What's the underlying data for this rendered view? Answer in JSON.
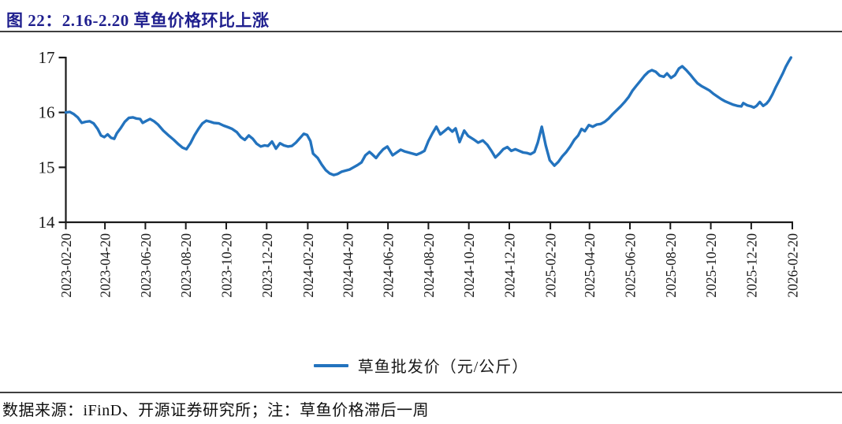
{
  "header": {
    "figure_title": "图 22：2.16-2.20 草鱼价格环比上涨"
  },
  "legend": {
    "series_label": "草鱼批发价（元/公斤）"
  },
  "footer": {
    "source_note": "数据来源：iFinD、开源证券研究所；注：草鱼价格滞后一周"
  },
  "colors": {
    "title_blue": "#1f1f8e",
    "line_blue": "#2373be",
    "axis_black": "#1a1a1a",
    "rule_gray": "#3f3f3f"
  },
  "chart_data": {
    "type": "line",
    "title": "图 22：2.16-2.20 草鱼价格环比上涨",
    "series_name": "草鱼批发价（元/公斤）",
    "xlabel": "",
    "ylabel": "",
    "ylim": [
      14,
      17
    ],
    "y_ticks": [
      17,
      16,
      15,
      14
    ],
    "grid": false,
    "legend_position": "bottom-center",
    "x_range": [
      "2023-02-20",
      "2026-02-20"
    ],
    "x_tick_labels": [
      "2023-02-20",
      "2023-04-20",
      "2023-06-20",
      "2023-08-20",
      "2023-10-20",
      "2023-12-20",
      "2024-02-20",
      "2024-04-20",
      "2024-06-20",
      "2024-08-20",
      "2024-10-20",
      "2024-12-20",
      "2025-02-20",
      "2025-04-20",
      "2025-06-20",
      "2025-08-20",
      "2025-10-20",
      "2025-12-20",
      "2026-02-20"
    ],
    "points": [
      [
        "2023-02-20",
        16.0
      ],
      [
        "2023-02-26",
        16.01
      ],
      [
        "2023-03-04",
        15.97
      ],
      [
        "2023-03-10",
        15.91
      ],
      [
        "2023-03-16",
        15.81
      ],
      [
        "2023-03-22",
        15.83
      ],
      [
        "2023-03-28",
        15.84
      ],
      [
        "2023-04-03",
        15.8
      ],
      [
        "2023-04-09",
        15.7
      ],
      [
        "2023-04-14",
        15.58
      ],
      [
        "2023-04-19",
        15.55
      ],
      [
        "2023-04-24",
        15.6
      ],
      [
        "2023-04-29",
        15.54
      ],
      [
        "2023-05-04",
        15.52
      ],
      [
        "2023-05-08",
        15.62
      ],
      [
        "2023-05-14",
        15.72
      ],
      [
        "2023-05-20",
        15.83
      ],
      [
        "2023-05-26",
        15.9
      ],
      [
        "2023-06-01",
        15.91
      ],
      [
        "2023-06-06",
        15.89
      ],
      [
        "2023-06-12",
        15.88
      ],
      [
        "2023-06-16",
        15.81
      ],
      [
        "2023-06-22",
        15.85
      ],
      [
        "2023-06-27",
        15.88
      ],
      [
        "2023-07-03",
        15.84
      ],
      [
        "2023-07-09",
        15.78
      ],
      [
        "2023-07-17",
        15.67
      ],
      [
        "2023-07-26",
        15.57
      ],
      [
        "2023-08-02",
        15.5
      ],
      [
        "2023-08-09",
        15.42
      ],
      [
        "2023-08-15",
        15.36
      ],
      [
        "2023-08-21",
        15.33
      ],
      [
        "2023-08-27",
        15.44
      ],
      [
        "2023-09-02",
        15.58
      ],
      [
        "2023-09-08",
        15.7
      ],
      [
        "2023-09-14",
        15.8
      ],
      [
        "2023-09-20",
        15.85
      ],
      [
        "2023-09-26",
        15.83
      ],
      [
        "2023-10-01",
        15.81
      ],
      [
        "2023-10-09",
        15.8
      ],
      [
        "2023-10-16",
        15.76
      ],
      [
        "2023-10-23",
        15.73
      ],
      [
        "2023-10-29",
        15.7
      ],
      [
        "2023-11-05",
        15.64
      ],
      [
        "2023-11-11",
        15.55
      ],
      [
        "2023-11-17",
        15.5
      ],
      [
        "2023-11-23",
        15.58
      ],
      [
        "2023-11-29",
        15.52
      ],
      [
        "2023-12-05",
        15.43
      ],
      [
        "2023-12-11",
        15.38
      ],
      [
        "2023-12-17",
        15.4
      ],
      [
        "2023-12-22",
        15.39
      ],
      [
        "2023-12-28",
        15.47
      ],
      [
        "2024-01-03",
        15.34
      ],
      [
        "2024-01-09",
        15.44
      ],
      [
        "2024-01-15",
        15.4
      ],
      [
        "2024-01-21",
        15.38
      ],
      [
        "2024-01-27",
        15.39
      ],
      [
        "2024-02-02",
        15.45
      ],
      [
        "2024-02-08",
        15.53
      ],
      [
        "2024-02-14",
        15.61
      ],
      [
        "2024-02-19",
        15.59
      ],
      [
        "2024-02-24",
        15.48
      ],
      [
        "2024-02-28",
        15.25
      ],
      [
        "2024-03-06",
        15.17
      ],
      [
        "2024-03-12",
        15.05
      ],
      [
        "2024-03-18",
        14.95
      ],
      [
        "2024-03-24",
        14.89
      ],
      [
        "2024-03-30",
        14.86
      ],
      [
        "2024-04-05",
        14.88
      ],
      [
        "2024-04-11",
        14.92
      ],
      [
        "2024-04-17",
        14.94
      ],
      [
        "2024-04-23",
        14.96
      ],
      [
        "2024-04-29",
        15.0
      ],
      [
        "2024-05-05",
        15.04
      ],
      [
        "2024-05-11",
        15.09
      ],
      [
        "2024-05-17",
        15.22
      ],
      [
        "2024-05-23",
        15.28
      ],
      [
        "2024-05-27",
        15.24
      ],
      [
        "2024-06-02",
        15.17
      ],
      [
        "2024-06-07",
        15.25
      ],
      [
        "2024-06-13",
        15.33
      ],
      [
        "2024-06-19",
        15.38
      ],
      [
        "2024-06-27",
        15.22
      ],
      [
        "2024-07-03",
        15.27
      ],
      [
        "2024-07-09",
        15.32
      ],
      [
        "2024-07-15",
        15.29
      ],
      [
        "2024-07-21",
        15.27
      ],
      [
        "2024-07-27",
        15.25
      ],
      [
        "2024-08-02",
        15.23
      ],
      [
        "2024-08-08",
        15.26
      ],
      [
        "2024-08-14",
        15.3
      ],
      [
        "2024-08-20",
        15.48
      ],
      [
        "2024-08-26",
        15.62
      ],
      [
        "2024-09-01",
        15.74
      ],
      [
        "2024-09-07",
        15.6
      ],
      [
        "2024-09-13",
        15.66
      ],
      [
        "2024-09-19",
        15.72
      ],
      [
        "2024-09-25",
        15.65
      ],
      [
        "2024-09-30",
        15.71
      ],
      [
        "2024-10-06",
        15.46
      ],
      [
        "2024-10-13",
        15.67
      ],
      [
        "2024-10-19",
        15.57
      ],
      [
        "2024-10-27",
        15.51
      ],
      [
        "2024-11-03",
        15.45
      ],
      [
        "2024-11-10",
        15.49
      ],
      [
        "2024-11-17",
        15.41
      ],
      [
        "2024-11-23",
        15.3
      ],
      [
        "2024-11-29",
        15.18
      ],
      [
        "2024-12-05",
        15.25
      ],
      [
        "2024-12-11",
        15.33
      ],
      [
        "2024-12-17",
        15.37
      ],
      [
        "2024-12-23",
        15.3
      ],
      [
        "2024-12-29",
        15.33
      ],
      [
        "2025-01-04",
        15.3
      ],
      [
        "2025-01-10",
        15.27
      ],
      [
        "2025-01-16",
        15.26
      ],
      [
        "2025-01-21",
        15.24
      ],
      [
        "2025-01-27",
        15.28
      ],
      [
        "2025-02-01",
        15.45
      ],
      [
        "2025-02-07",
        15.74
      ],
      [
        "2025-02-13",
        15.4
      ],
      [
        "2025-02-19",
        15.13
      ],
      [
        "2025-02-26",
        15.03
      ],
      [
        "2025-03-04",
        15.1
      ],
      [
        "2025-03-10",
        15.2
      ],
      [
        "2025-03-16",
        15.28
      ],
      [
        "2025-03-22",
        15.38
      ],
      [
        "2025-03-28",
        15.5
      ],
      [
        "2025-04-03",
        15.58
      ],
      [
        "2025-04-08",
        15.7
      ],
      [
        "2025-04-13",
        15.66
      ],
      [
        "2025-04-19",
        15.77
      ],
      [
        "2025-04-25",
        15.74
      ],
      [
        "2025-05-01",
        15.78
      ],
      [
        "2025-05-07",
        15.79
      ],
      [
        "2025-05-13",
        15.83
      ],
      [
        "2025-05-19",
        15.89
      ],
      [
        "2025-05-25",
        15.97
      ],
      [
        "2025-05-31",
        16.04
      ],
      [
        "2025-06-06",
        16.11
      ],
      [
        "2025-06-12",
        16.19
      ],
      [
        "2025-06-18",
        16.28
      ],
      [
        "2025-06-24",
        16.4
      ],
      [
        "2025-06-30",
        16.49
      ],
      [
        "2025-07-06",
        16.58
      ],
      [
        "2025-07-12",
        16.67
      ],
      [
        "2025-07-18",
        16.74
      ],
      [
        "2025-07-23",
        16.77
      ],
      [
        "2025-07-29",
        16.74
      ],
      [
        "2025-08-04",
        16.67
      ],
      [
        "2025-08-10",
        16.65
      ],
      [
        "2025-08-15",
        16.71
      ],
      [
        "2025-08-21",
        16.63
      ],
      [
        "2025-08-27",
        16.68
      ],
      [
        "2025-09-02",
        16.8
      ],
      [
        "2025-09-07",
        16.84
      ],
      [
        "2025-09-13",
        16.77
      ],
      [
        "2025-09-19",
        16.69
      ],
      [
        "2025-09-25",
        16.6
      ],
      [
        "2025-09-30",
        16.53
      ],
      [
        "2025-10-06",
        16.48
      ],
      [
        "2025-10-12",
        16.44
      ],
      [
        "2025-10-18",
        16.4
      ],
      [
        "2025-10-24",
        16.34
      ],
      [
        "2025-10-30",
        16.29
      ],
      [
        "2025-11-05",
        16.24
      ],
      [
        "2025-11-11",
        16.2
      ],
      [
        "2025-11-17",
        16.17
      ],
      [
        "2025-11-23",
        16.14
      ],
      [
        "2025-11-29",
        16.12
      ],
      [
        "2025-12-05",
        16.11
      ],
      [
        "2025-12-08",
        16.17
      ],
      [
        "2025-12-14",
        16.13
      ],
      [
        "2025-12-20",
        16.11
      ],
      [
        "2025-12-24",
        16.09
      ],
      [
        "2025-12-28",
        16.12
      ],
      [
        "2026-01-02",
        16.19
      ],
      [
        "2026-01-07",
        16.12
      ],
      [
        "2026-01-12",
        16.16
      ],
      [
        "2026-01-16",
        16.22
      ],
      [
        "2026-01-21",
        16.33
      ],
      [
        "2026-01-26",
        16.46
      ],
      [
        "2026-02-01",
        16.6
      ],
      [
        "2026-02-06",
        16.72
      ],
      [
        "2026-02-10",
        16.83
      ],
      [
        "2026-02-14",
        16.92
      ],
      [
        "2026-02-18",
        17.0
      ]
    ]
  }
}
